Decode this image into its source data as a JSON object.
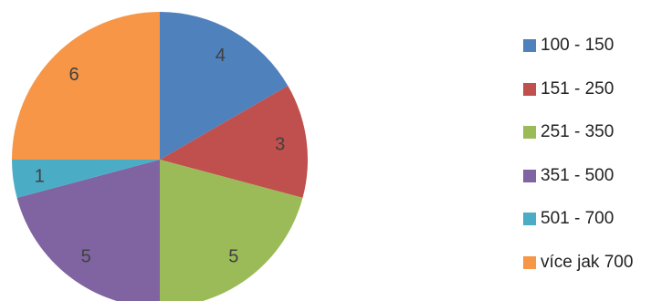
{
  "chart_data": {
    "type": "pie",
    "title": "",
    "categories": [
      "100 - 150",
      "151 - 250",
      "251 - 350",
      "351 - 500",
      "501 - 700",
      "více jak 700"
    ],
    "values": [
      4,
      3,
      5,
      5,
      1,
      6
    ],
    "colors": [
      "#4f81bd",
      "#c0504d",
      "#9bbb59",
      "#8064a2",
      "#4bacc6",
      "#f79646"
    ],
    "start_angle_deg": 0,
    "direction": "clockwise",
    "legend_position": "right"
  }
}
